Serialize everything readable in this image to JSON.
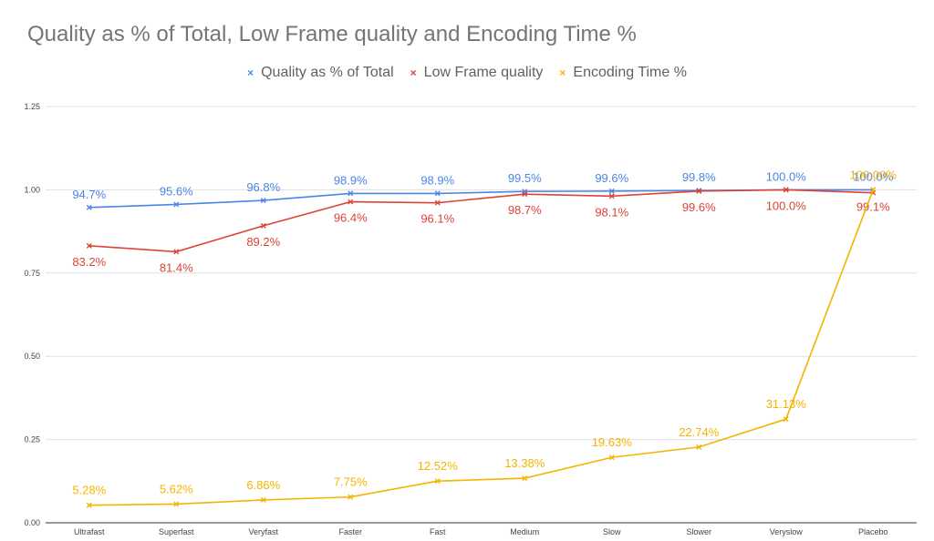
{
  "chart_data": {
    "type": "line",
    "title": "Quality as % of Total, Low Frame quality and Encoding Time %",
    "xlabel": "",
    "ylabel": "",
    "categories": [
      "Ultrafast",
      "Superfast",
      "Veryfast",
      "Faster",
      "Fast",
      "Medium",
      "Slow",
      "Slower",
      "Veryslow",
      "Placebo"
    ],
    "ylim": [
      0,
      1.25
    ],
    "yticks": [
      "0.00",
      "0.25",
      "0.50",
      "0.75",
      "1.00",
      "1.25"
    ],
    "grid": true,
    "legend_position": "top",
    "series": [
      {
        "name": "Quality as % of Total",
        "color": "#4a86e8",
        "values": [
          0.947,
          0.956,
          0.968,
          0.989,
          0.989,
          0.995,
          0.996,
          0.998,
          1.0,
          1.0
        ],
        "labels": [
          "94.7%",
          "95.6%",
          "96.8%",
          "98.9%",
          "98.9%",
          "99.5%",
          "99.6%",
          "99.8%",
          "100.0%",
          "100.0%"
        ]
      },
      {
        "name": "Low Frame quality",
        "color": "#db4437",
        "values": [
          0.832,
          0.814,
          0.892,
          0.964,
          0.961,
          0.987,
          0.981,
          0.996,
          1.0,
          0.991
        ],
        "labels": [
          "83.2%",
          "81.4%",
          "89.2%",
          "96.4%",
          "96.1%",
          "98.7%",
          "98.1%",
          "99.6%",
          "100.0%",
          "99.1%"
        ]
      },
      {
        "name": "Encoding Time %",
        "color": "#f4b400",
        "values": [
          0.0528,
          0.0562,
          0.0686,
          0.0775,
          0.1252,
          0.1338,
          0.1963,
          0.2274,
          0.3113,
          1.0
        ],
        "labels": [
          "5.28%",
          "5.62%",
          "6.86%",
          "7.75%",
          "12.52%",
          "13.38%",
          "19.63%",
          "22.74%",
          "31.13%",
          "100.00%"
        ]
      }
    ]
  }
}
